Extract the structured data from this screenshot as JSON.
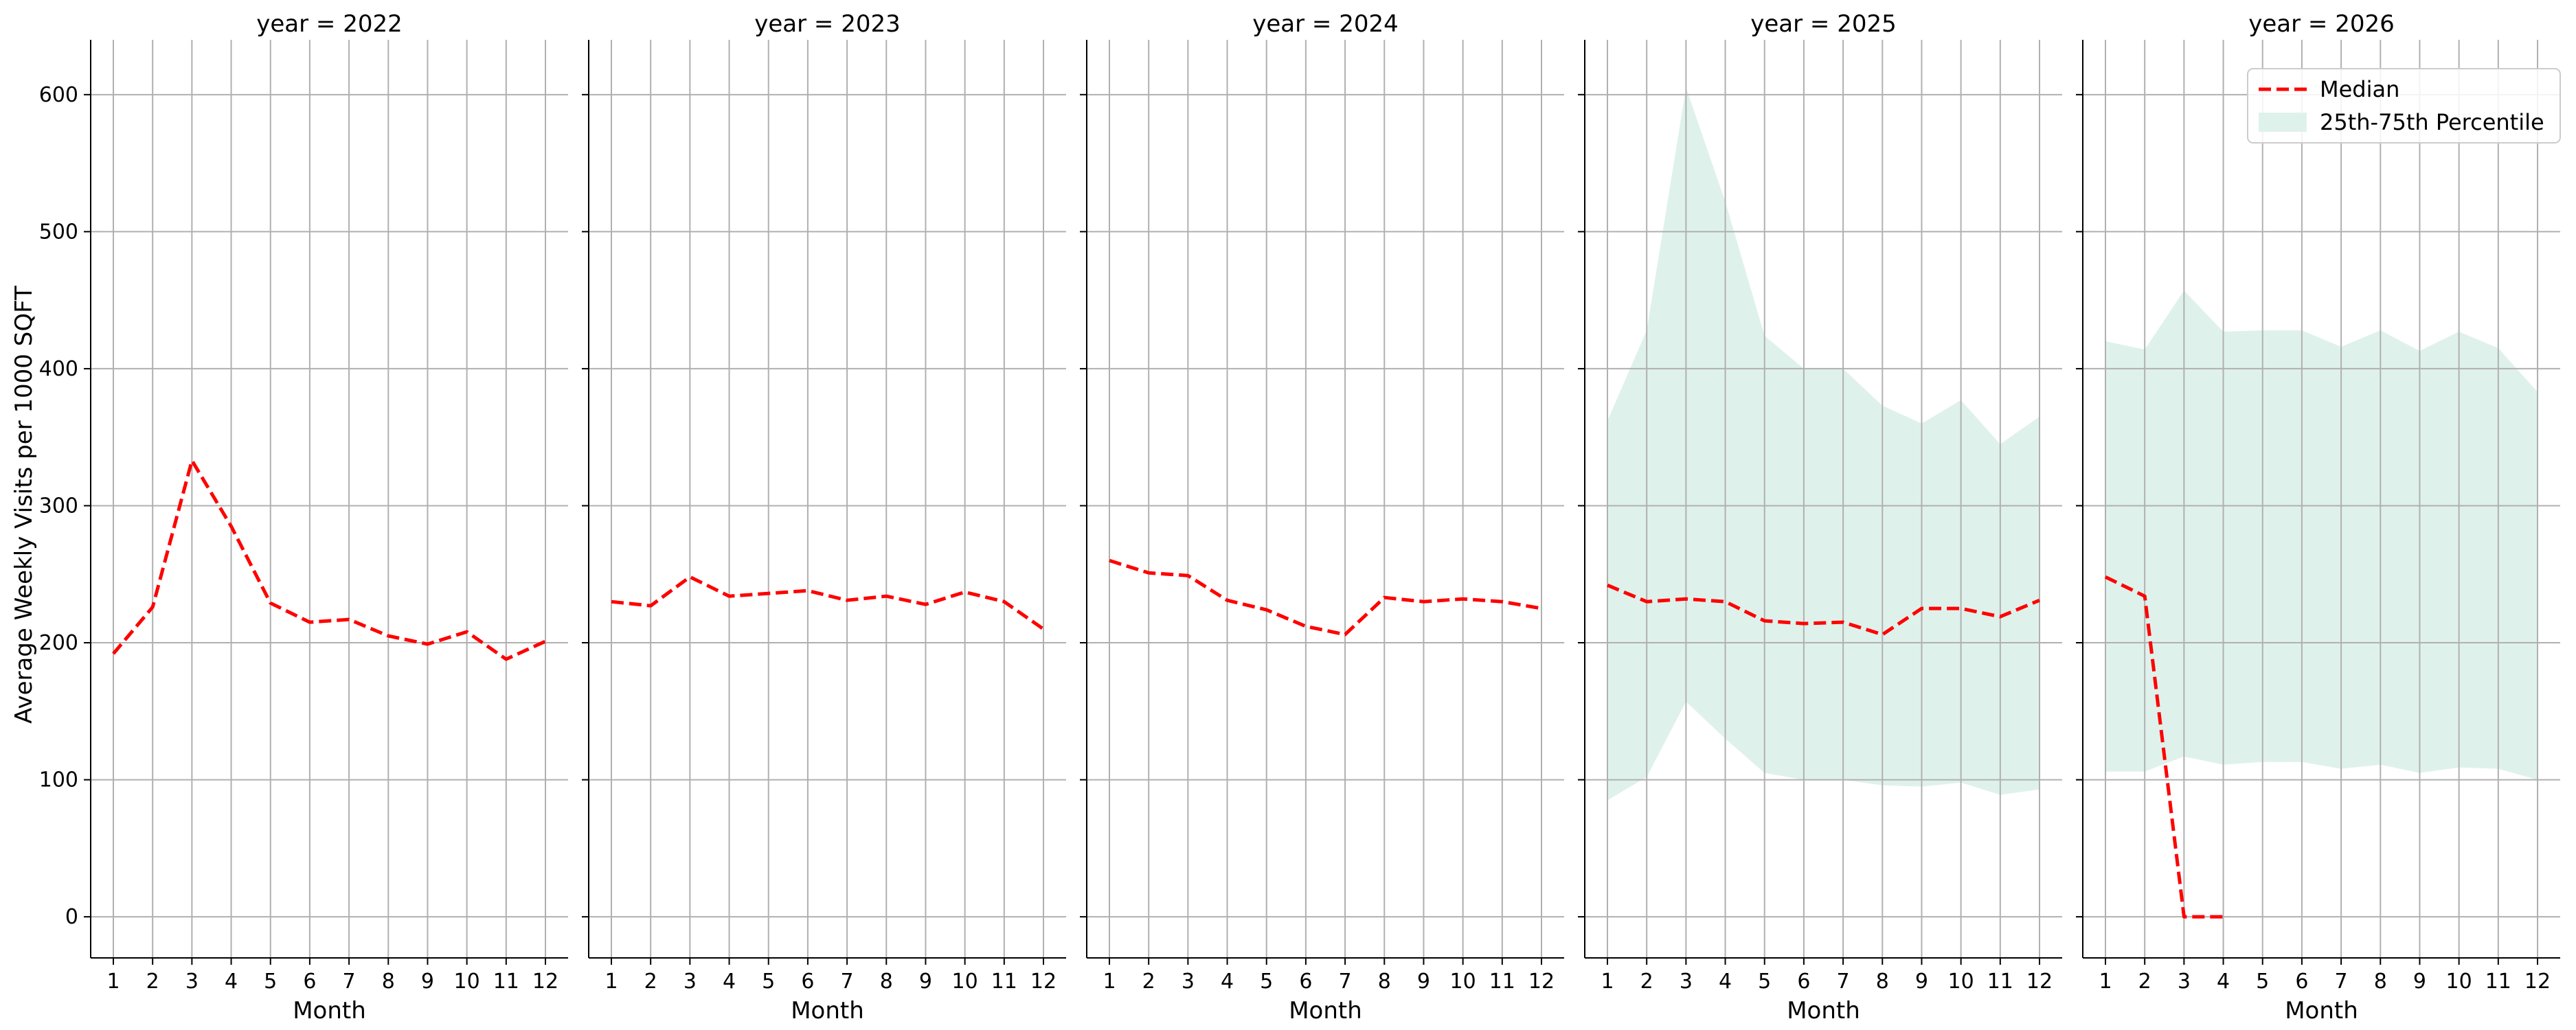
{
  "chart_data": {
    "type": "line",
    "ylabel": "Average Weekly Visits per 1000 SQFT",
    "xlabel": "Month",
    "ylim": [
      -30,
      640
    ],
    "yticks": [
      0,
      100,
      200,
      300,
      400,
      500,
      600
    ],
    "x_ticks": [
      1,
      2,
      3,
      4,
      5,
      6,
      7,
      8,
      9,
      10,
      11,
      12
    ],
    "grid": true,
    "legend": {
      "position": "top-right",
      "entries": [
        {
          "name": "Median",
          "style": "dashed-line",
          "color": "#ff0000"
        },
        {
          "name": "25th-75th Percentile",
          "style": "band",
          "color": "#dff1eb"
        }
      ]
    },
    "colors": {
      "median": "#ff0000",
      "band": "#dff1eb",
      "grid": "#b0b0b0"
    },
    "panels": [
      {
        "title": "year = 2022",
        "median": {
          "x": [
            1,
            2,
            3,
            4,
            5,
            6,
            7,
            8,
            9,
            10,
            11,
            12
          ],
          "y": [
            192,
            226,
            333,
            285,
            229,
            215,
            217,
            205,
            199,
            208,
            188,
            201
          ]
        },
        "band": null
      },
      {
        "title": "year = 2023",
        "median": {
          "x": [
            1,
            2,
            3,
            4,
            5,
            6,
            7,
            8,
            9,
            10,
            11,
            12
          ],
          "y": [
            230,
            227,
            248,
            234,
            236,
            238,
            231,
            234,
            228,
            237,
            230,
            210
          ]
        },
        "band": null
      },
      {
        "title": "year = 2024",
        "median": {
          "x": [
            1,
            2,
            3,
            4,
            5,
            6,
            7,
            8,
            9,
            10,
            11,
            12
          ],
          "y": [
            260,
            251,
            249,
            231,
            224,
            212,
            206,
            233,
            230,
            232,
            230,
            225
          ]
        },
        "band": null
      },
      {
        "title": "year = 2025",
        "median": {
          "x": [
            1,
            2,
            3,
            4,
            5,
            6,
            7,
            8,
            9,
            10,
            11,
            12
          ],
          "y": [
            242,
            230,
            232,
            230,
            216,
            214,
            215,
            206,
            225,
            225,
            219,
            231
          ]
        },
        "band": {
          "x": [
            1,
            2,
            3,
            4,
            5,
            6,
            7,
            8,
            9,
            10,
            11,
            12
          ],
          "lower": [
            85,
            102,
            157,
            130,
            105,
            100,
            100,
            96,
            95,
            98,
            89,
            93
          ],
          "upper": [
            362,
            428,
            605,
            522,
            424,
            400,
            400,
            373,
            360,
            377,
            345,
            365
          ]
        }
      },
      {
        "title": "year = 2026",
        "median": {
          "x": [
            1,
            2,
            3,
            4
          ],
          "y": [
            248,
            234,
            0,
            0
          ]
        },
        "band": {
          "x": [
            1,
            2,
            3,
            4,
            5,
            6,
            7,
            8,
            9,
            10,
            11,
            12
          ],
          "lower": [
            106,
            106,
            117,
            111,
            113,
            113,
            108,
            111,
            105,
            109,
            108,
            100
          ],
          "upper": [
            420,
            414,
            457,
            427,
            428,
            428,
            416,
            428,
            413,
            427,
            415,
            383
          ]
        }
      }
    ]
  }
}
